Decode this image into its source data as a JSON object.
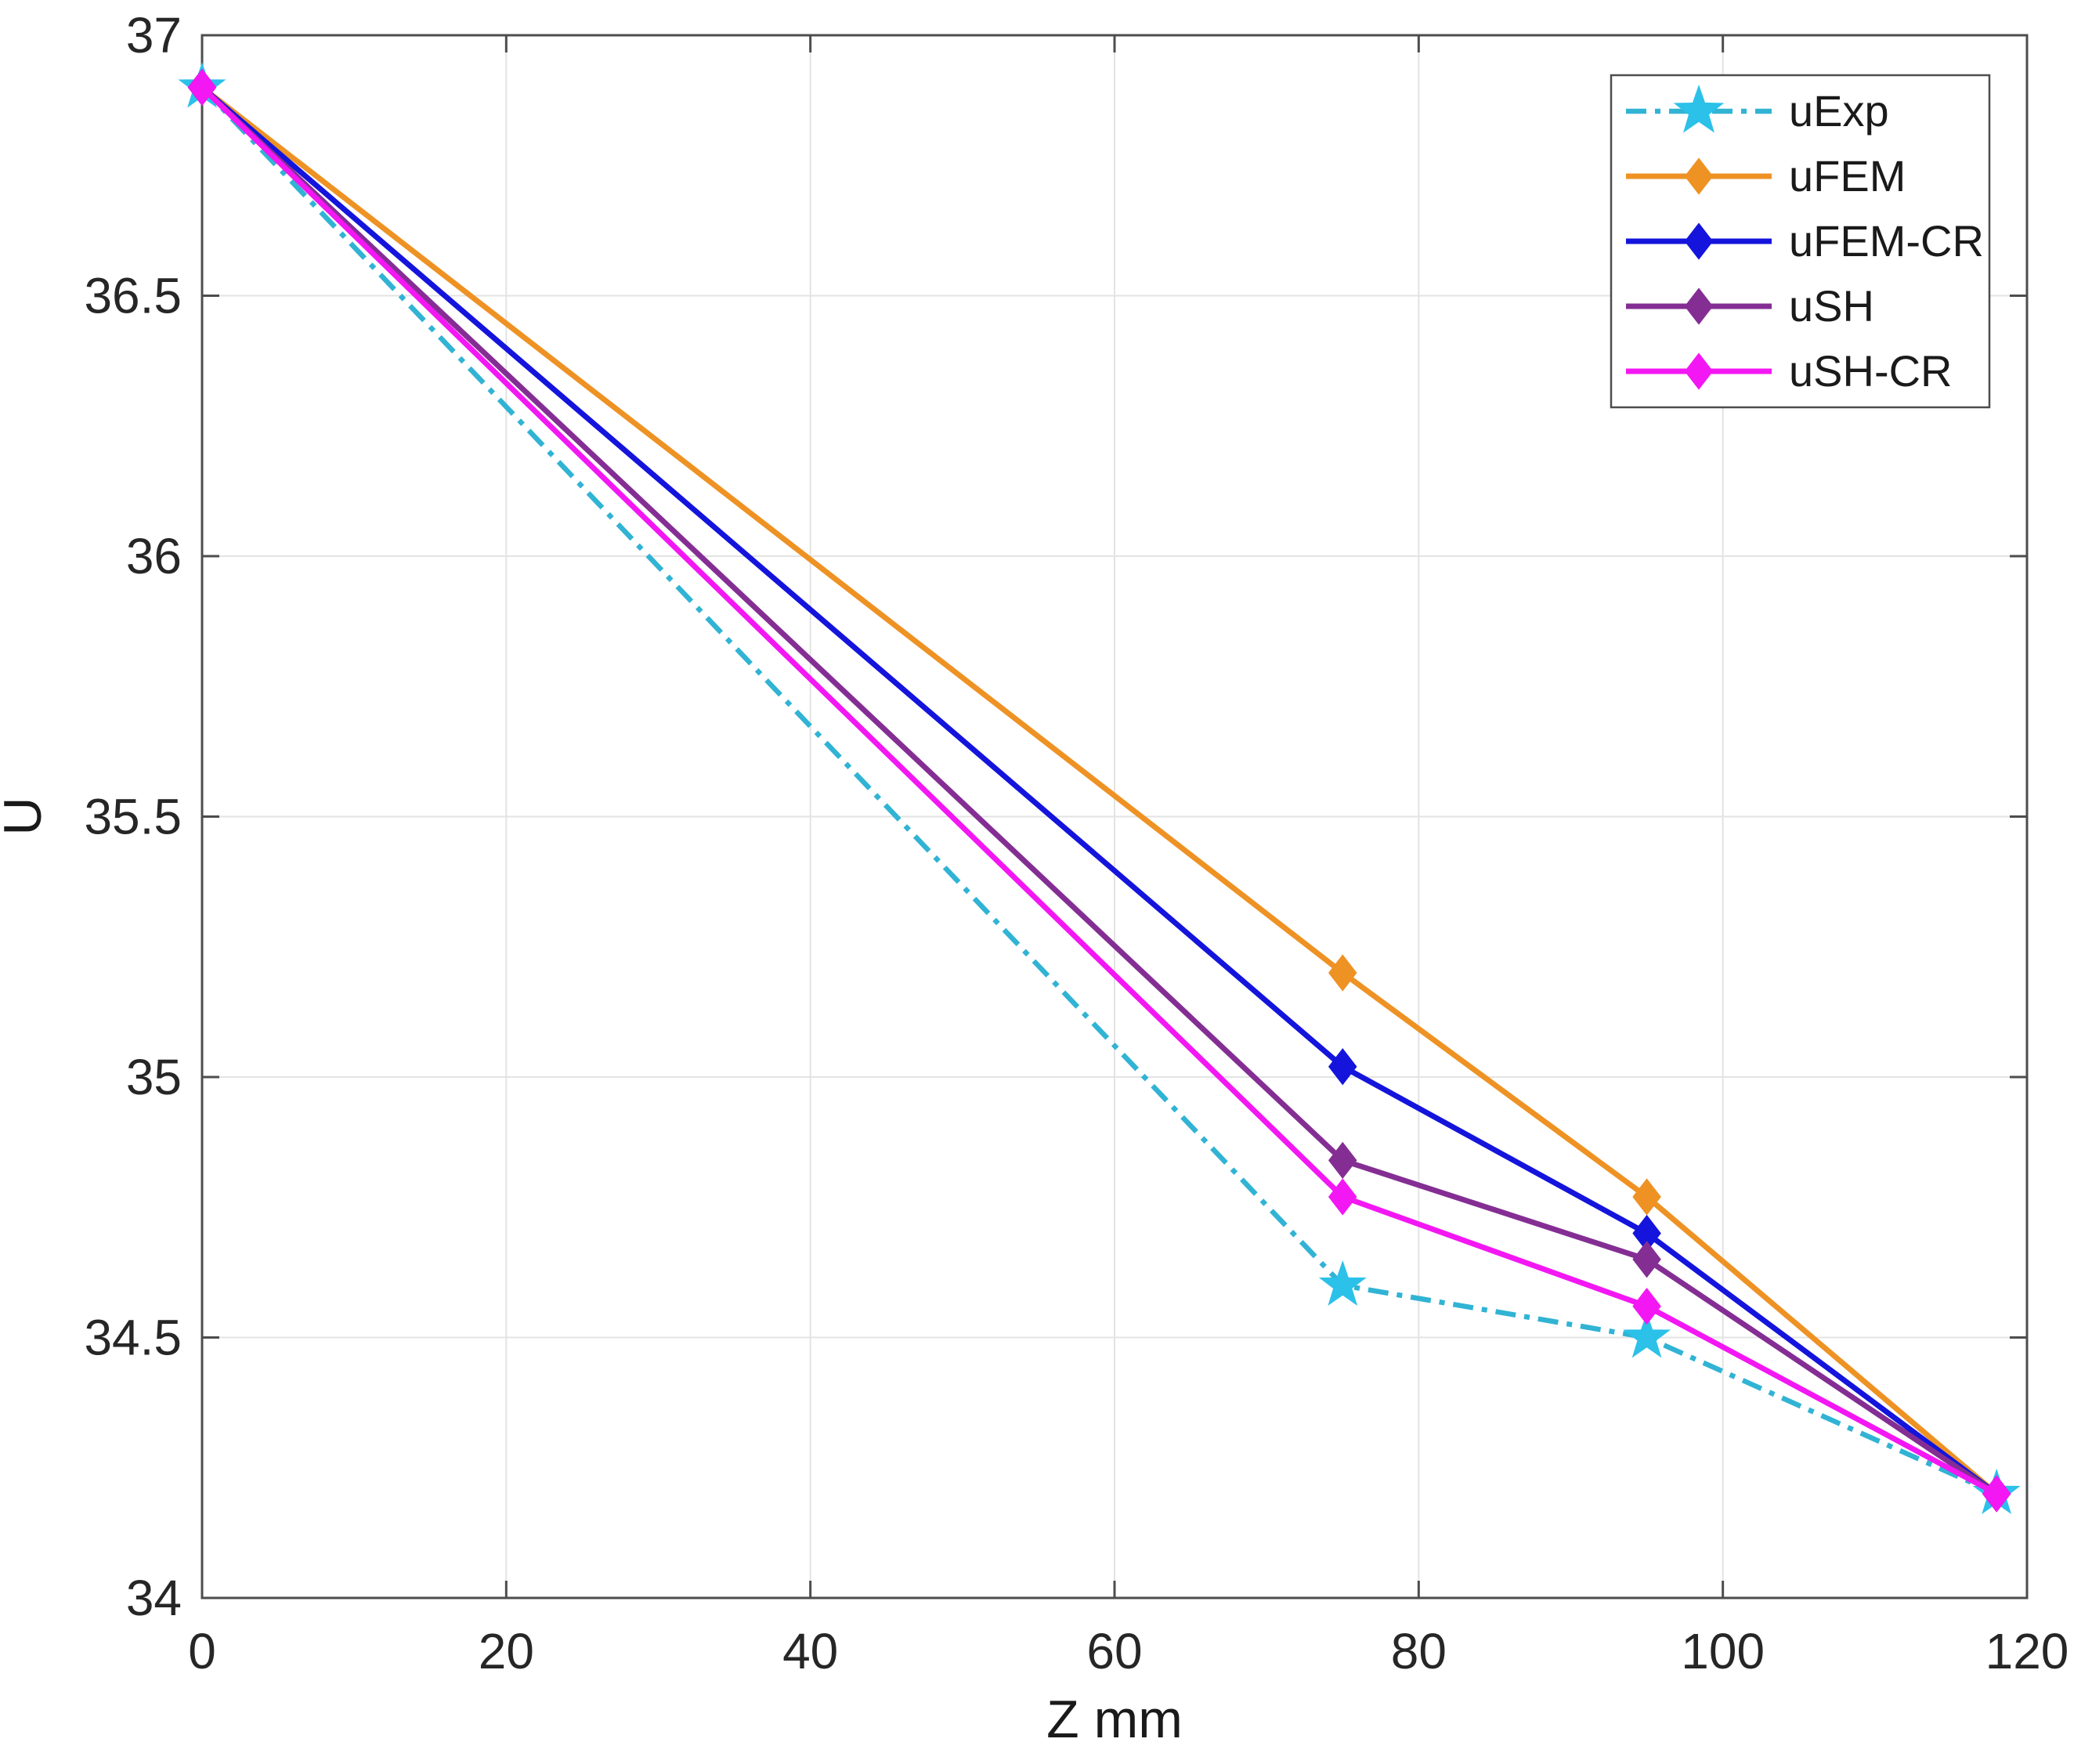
{
  "figure": {
    "background": "#FFFFFF",
    "axis_color": "#4D4D4D",
    "grid_color": "#E3E3E3",
    "tick_label_color": "#262626",
    "axis_label_color": "#1A1A1A",
    "legend_border_color": "#4D4D4D",
    "legend_text_color": "#1A1A1A"
  },
  "chart_data": {
    "type": "line",
    "title": "",
    "xlabel": "Z mm",
    "ylabel": "U",
    "xlim": [
      0,
      120
    ],
    "ylim": [
      34,
      37
    ],
    "xticks": [
      0,
      20,
      40,
      60,
      80,
      100,
      120
    ],
    "yticks": [
      34,
      34.5,
      35,
      35.5,
      36,
      36.5,
      37
    ],
    "grid": true,
    "legend_position": "top-right",
    "x": [
      0,
      75,
      95,
      118
    ],
    "series": [
      {
        "name": "uExp",
        "color": "#31B3D4",
        "marker": "star",
        "marker_color": "#2BC1E9",
        "line_style": "dash-dot",
        "values": [
          36.9,
          34.6,
          34.5,
          34.2
        ]
      },
      {
        "name": "uFEM",
        "color": "#EE9224",
        "marker": "diamond",
        "marker_color": "#EE9224",
        "line_style": "solid",
        "values": [
          36.9,
          35.2,
          34.77,
          34.2
        ]
      },
      {
        "name": "uFEM-CR",
        "color": "#1414DC",
        "marker": "diamond",
        "marker_color": "#1414DC",
        "line_style": "solid",
        "values": [
          36.9,
          35.02,
          34.7,
          34.2
        ]
      },
      {
        "name": "uSH",
        "color": "#842E94",
        "marker": "diamond",
        "marker_color": "#842E94",
        "line_style": "solid",
        "values": [
          36.9,
          34.84,
          34.65,
          34.2
        ]
      },
      {
        "name": "uSH-CR",
        "color": "#F317F3",
        "marker": "diamond",
        "marker_color": "#F317F3",
        "line_style": "solid",
        "values": [
          36.9,
          34.77,
          34.56,
          34.2
        ]
      }
    ]
  }
}
